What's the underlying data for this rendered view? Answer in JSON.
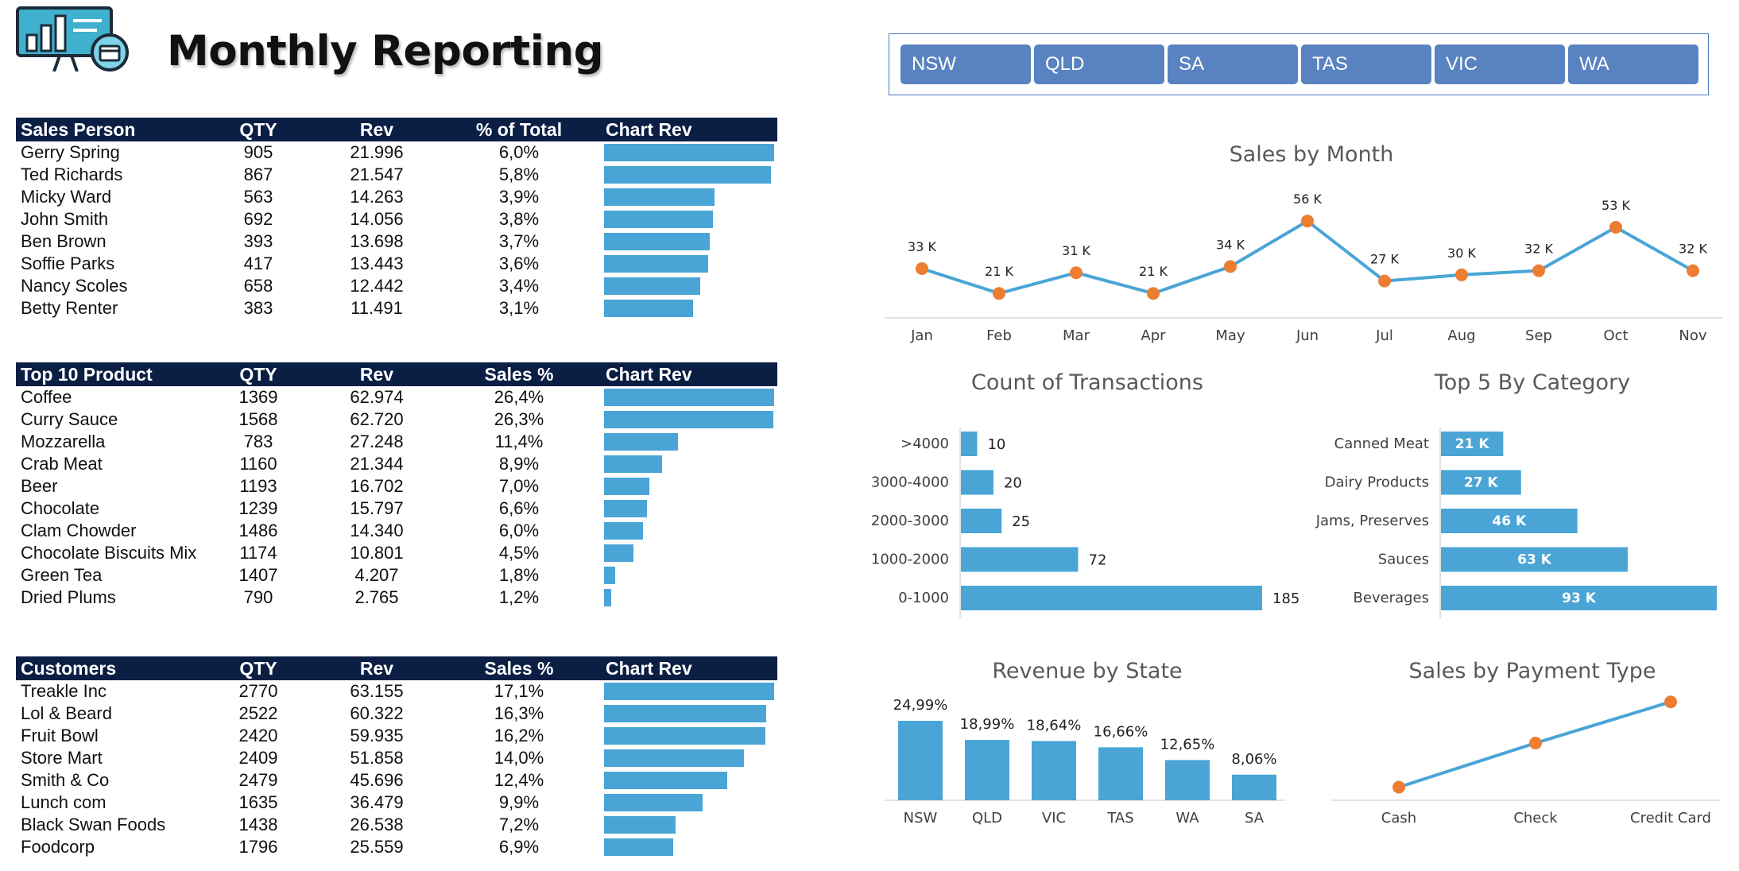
{
  "header": {
    "title": "Monthly Reporting"
  },
  "colors": {
    "header_bg": "#0b1f44",
    "bar": "#4aa5d6",
    "slicer": "#5882c0",
    "line": "#4aa5d6",
    "marker": "#ed7d31"
  },
  "slicer": {
    "items": [
      "NSW",
      "QLD",
      "SA",
      "TAS",
      "VIC",
      "WA"
    ]
  },
  "sales_person": {
    "headers": [
      "Sales Person",
      "QTY",
      "Rev",
      "% of Total",
      "Chart Rev"
    ],
    "rows": [
      {
        "name": "Gerry Spring",
        "qty": "905",
        "rev": "21.996",
        "pct": "6,0%",
        "value": 21.996
      },
      {
        "name": "Ted Richards",
        "qty": "867",
        "rev": "21.547",
        "pct": "5,8%",
        "value": 21.547
      },
      {
        "name": "Micky Ward",
        "qty": "563",
        "rev": "14.263",
        "pct": "3,9%",
        "value": 14.263
      },
      {
        "name": "John Smith",
        "qty": "692",
        "rev": "14.056",
        "pct": "3,8%",
        "value": 14.056
      },
      {
        "name": "Ben Brown",
        "qty": "393",
        "rev": "13.698",
        "pct": "3,7%",
        "value": 13.698
      },
      {
        "name": "Soffie Parks",
        "qty": "417",
        "rev": "13.443",
        "pct": "3,6%",
        "value": 13.443
      },
      {
        "name": "Nancy Scoles",
        "qty": "658",
        "rev": "12.442",
        "pct": "3,4%",
        "value": 12.442
      },
      {
        "name": "Betty Renter",
        "qty": "383",
        "rev": "11.491",
        "pct": "3,1%",
        "value": 11.491
      }
    ]
  },
  "top_products": {
    "headers": [
      "Top 10 Product",
      "QTY",
      "Rev",
      "Sales %",
      "Chart Rev"
    ],
    "rows": [
      {
        "name": "Coffee",
        "qty": "1369",
        "rev": "62.974",
        "pct": "26,4%",
        "value": 62.974
      },
      {
        "name": "Curry Sauce",
        "qty": "1568",
        "rev": "62.720",
        "pct": "26,3%",
        "value": 62.72
      },
      {
        "name": "Mozzarella",
        "qty": "783",
        "rev": "27.248",
        "pct": "11,4%",
        "value": 27.248
      },
      {
        "name": "Crab Meat",
        "qty": "1160",
        "rev": "21.344",
        "pct": "8,9%",
        "value": 21.344
      },
      {
        "name": "Beer",
        "qty": "1193",
        "rev": "16.702",
        "pct": "7,0%",
        "value": 16.702
      },
      {
        "name": "Chocolate",
        "qty": "1239",
        "rev": "15.797",
        "pct": "6,6%",
        "value": 15.797
      },
      {
        "name": "Clam Chowder",
        "qty": "1486",
        "rev": "14.340",
        "pct": "6,0%",
        "value": 14.34
      },
      {
        "name": "Chocolate Biscuits Mix",
        "qty": "1174",
        "rev": "10.801",
        "pct": "4,5%",
        "value": 10.801
      },
      {
        "name": "Green Tea",
        "qty": "1407",
        "rev": "4.207",
        "pct": "1,8%",
        "value": 4.207
      },
      {
        "name": "Dried Plums",
        "qty": "790",
        "rev": "2.765",
        "pct": "1,2%",
        "value": 2.765
      }
    ]
  },
  "customers": {
    "headers": [
      "Customers",
      "QTY",
      "Rev",
      "Sales %",
      "Chart Rev"
    ],
    "rows": [
      {
        "name": "Treakle Inc",
        "qty": "2770",
        "rev": "63.155",
        "pct": "17,1%",
        "value": 63.155
      },
      {
        "name": "Lol & Beard",
        "qty": "2522",
        "rev": "60.322",
        "pct": "16,3%",
        "value": 60.322
      },
      {
        "name": "Fruit Bowl",
        "qty": "2420",
        "rev": "59.935",
        "pct": "16,2%",
        "value": 59.935
      },
      {
        "name": "Store Mart",
        "qty": "2409",
        "rev": "51.858",
        "pct": "14,0%",
        "value": 51.858
      },
      {
        "name": "Smith & Co",
        "qty": "2479",
        "rev": "45.696",
        "pct": "12,4%",
        "value": 45.696
      },
      {
        "name": "Lunch com",
        "qty": "1635",
        "rev": "36.479",
        "pct": "9,9%",
        "value": 36.479
      },
      {
        "name": "Black Swan Foods",
        "qty": "1438",
        "rev": "26.538",
        "pct": "7,2%",
        "value": 26.538
      },
      {
        "name": "Foodcorp",
        "qty": "1796",
        "rev": "25.559",
        "pct": "6,9%",
        "value": 25.559
      }
    ]
  },
  "chart_data": [
    {
      "id": "sales_by_month",
      "type": "line",
      "title": "Sales by Month",
      "categories": [
        "Jan",
        "Feb",
        "Mar",
        "Apr",
        "May",
        "Jun",
        "Jul",
        "Aug",
        "Sep",
        "Oct",
        "Nov"
      ],
      "values": [
        33,
        21,
        31,
        21,
        34,
        56,
        27,
        30,
        32,
        53,
        32
      ],
      "labels": [
        "33 K",
        "21 K",
        "31 K",
        "21 K",
        "34 K",
        "56 K",
        "27 K",
        "30 K",
        "32 K",
        "53 K",
        "32 K"
      ],
      "ylim": [
        0,
        60
      ],
      "grid": false,
      "legend": "none"
    },
    {
      "id": "count_of_transactions",
      "type": "bar",
      "orientation": "horizontal",
      "title": "Count of Transactions",
      "categories": [
        ">4000",
        "3000-4000",
        "2000-3000",
        "1000-2000",
        "0-1000"
      ],
      "values": [
        10,
        20,
        25,
        72,
        185
      ],
      "labels": [
        "10",
        "20",
        "25",
        "72",
        "185"
      ],
      "xlim": [
        0,
        185
      ],
      "grid": false,
      "legend": "none"
    },
    {
      "id": "top5_by_category",
      "type": "bar",
      "orientation": "horizontal",
      "title": "Top 5 By Category",
      "categories": [
        "Canned Meat",
        "Dairy Products",
        "Jams, Preserves",
        "Sauces",
        "Beverages"
      ],
      "values": [
        21,
        27,
        46,
        63,
        93
      ],
      "labels": [
        "21 K",
        "27 K",
        "46 K",
        "63 K",
        "93 K"
      ],
      "xlim": [
        0,
        93
      ],
      "grid": false,
      "legend": "none"
    },
    {
      "id": "revenue_by_state",
      "type": "bar",
      "orientation": "vertical",
      "title": "Revenue by State",
      "categories": [
        "NSW",
        "QLD",
        "VIC",
        "TAS",
        "WA",
        "SA"
      ],
      "values": [
        24.99,
        18.99,
        18.64,
        16.66,
        12.65,
        8.06
      ],
      "labels": [
        "24,99%",
        "18,99%",
        "18,64%",
        "16,66%",
        "12,65%",
        "8,06%"
      ],
      "ylim": [
        0,
        25
      ],
      "grid": false,
      "legend": "none"
    },
    {
      "id": "sales_by_payment_type",
      "type": "line",
      "title": "Sales by Payment Type",
      "categories": [
        "Cash",
        "Check",
        "Credit Card"
      ],
      "values": [
        0.1,
        0.4,
        0.68
      ],
      "labels": [],
      "ylim": [
        0,
        1
      ],
      "grid": false,
      "legend": "none"
    }
  ]
}
